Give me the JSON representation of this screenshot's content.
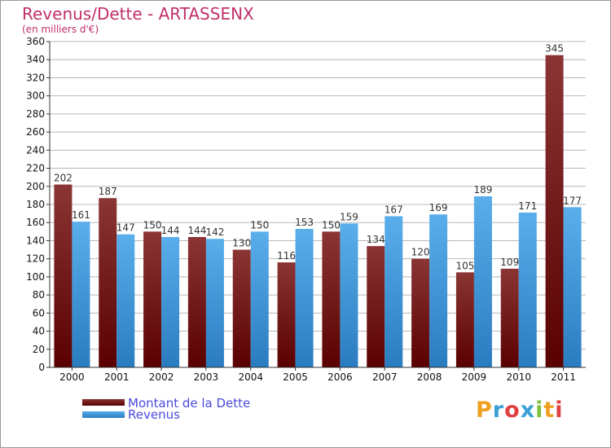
{
  "header": {
    "title": "Revenus/Dette - ARTASSENX",
    "subtitle": "(en milliers d'€)"
  },
  "colors": {
    "title": "#c0306a",
    "debt_top": "#8b3535",
    "debt_bottom": "#5a0000",
    "revenue_top": "#5aaeea",
    "revenue_bottom": "#2a7cc0",
    "grid": "#b8b8b8",
    "legend_text": "#4a4adf"
  },
  "chart_data": {
    "type": "bar",
    "categories": [
      "2000",
      "2001",
      "2002",
      "2003",
      "2004",
      "2005",
      "2006",
      "2007",
      "2008",
      "2009",
      "2010",
      "2011"
    ],
    "series": [
      {
        "name": "Montant de la Dette",
        "values": [
          202,
          187,
          150,
          144,
          130,
          116,
          150,
          134,
          120,
          105,
          109,
          345
        ]
      },
      {
        "name": "Revenus",
        "values": [
          161,
          147,
          144,
          142,
          150,
          153,
          159,
          167,
          169,
          189,
          171,
          177
        ]
      }
    ],
    "ylim": [
      0,
      360
    ],
    "ytick_step": 20,
    "grid": true,
    "legend_position": "bottom-left"
  },
  "legend": {
    "debt_label": "Montant de la Dette",
    "revenue_label": "Revenus"
  },
  "brand": {
    "logo_text": "Proxiti",
    "logo_colors": [
      "#f0a020",
      "#3aa0d8",
      "#e04040",
      "#3aa0d8",
      "#80c040",
      "#f0a020",
      "#e04040"
    ]
  }
}
